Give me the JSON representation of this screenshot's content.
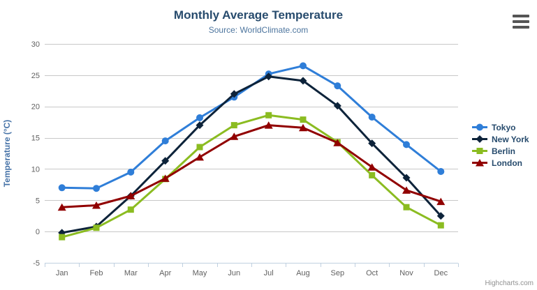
{
  "header": {
    "title": "Monthly Average Temperature",
    "subtitle": "Source: WorldClimate.com"
  },
  "export_menu": {
    "icon": "hamburger-menu-icon"
  },
  "credits": {
    "label": "Highcharts.com"
  },
  "chart_data": {
    "type": "line",
    "title": "Monthly Average Temperature",
    "subtitle": "Source: WorldClimate.com",
    "categories": [
      "Jan",
      "Feb",
      "Mar",
      "Apr",
      "May",
      "Jun",
      "Jul",
      "Aug",
      "Sep",
      "Oct",
      "Nov",
      "Dec"
    ],
    "series": [
      {
        "name": "Tokyo",
        "color": "#2f7ed8",
        "marker": "circle",
        "values": [
          7.0,
          6.9,
          9.5,
          14.5,
          18.2,
          21.5,
          25.2,
          26.5,
          23.3,
          18.3,
          13.9,
          9.6
        ]
      },
      {
        "name": "New York",
        "color": "#0d233a",
        "marker": "diamond",
        "values": [
          -0.2,
          0.8,
          5.7,
          11.3,
          17.0,
          22.0,
          24.8,
          24.1,
          20.1,
          14.1,
          8.6,
          2.5
        ]
      },
      {
        "name": "Berlin",
        "color": "#8bbc21",
        "marker": "square",
        "values": [
          -0.9,
          0.6,
          3.5,
          8.4,
          13.5,
          17.0,
          18.6,
          17.9,
          14.3,
          9.0,
          3.9,
          1.0
        ]
      },
      {
        "name": "London",
        "color": "#910000",
        "marker": "triangle",
        "values": [
          3.9,
          4.2,
          5.7,
          8.5,
          11.9,
          15.2,
          17.0,
          16.6,
          14.2,
          10.3,
          6.6,
          4.8
        ]
      }
    ],
    "xlabel": "",
    "ylabel": "Temperature (°C)",
    "ylim": [
      -5,
      30
    ],
    "yticks": [
      -5,
      0,
      5,
      10,
      15,
      20,
      25,
      30
    ],
    "grid": true,
    "legend_position": "right",
    "colors": {
      "grid_line": "#c8c8c8",
      "axis_line": "#c0d0e0",
      "tick_label": "#606060",
      "axis_title": "#4572a7",
      "title": "#274b6d",
      "subtitle": "#4d759e"
    }
  }
}
